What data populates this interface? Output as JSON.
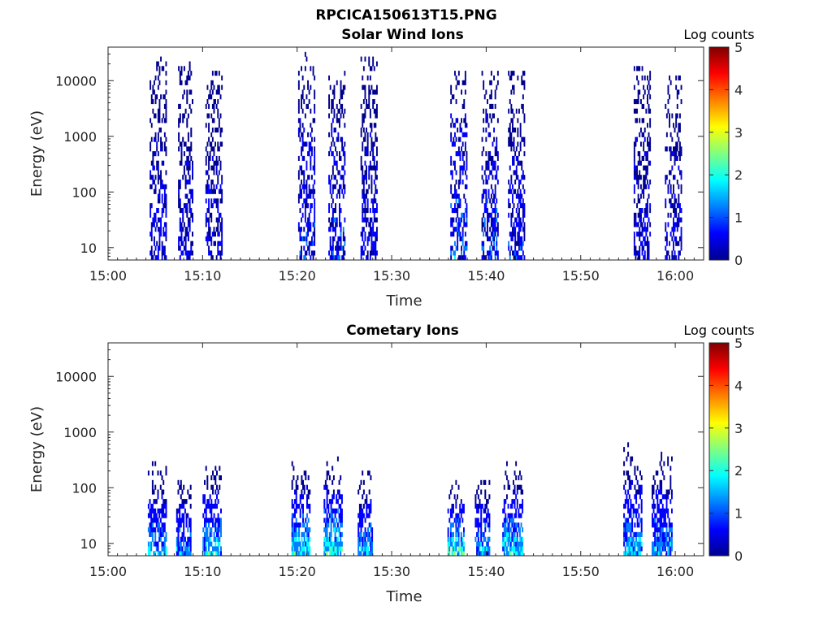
{
  "figure_title": "RPCICA150613T15.PNG",
  "colormap": [
    "#00008f",
    "#0000ff",
    "#0080ff",
    "#00ffff",
    "#80ff80",
    "#ffff00",
    "#ff8000",
    "#ff0000",
    "#800000"
  ],
  "chart_data": [
    {
      "type": "heatmap",
      "title": "Solar Wind Ions",
      "xlabel": "Time",
      "ylabel": "Energy (eV)",
      "x_ticks": [
        "15:00",
        "15:10",
        "15:20",
        "15:30",
        "15:40",
        "15:50",
        "16:00"
      ],
      "x_range_minutes": [
        0,
        63
      ],
      "y_scale": "log",
      "y_ticks": [
        "10",
        "100",
        "1000",
        "10000"
      ],
      "y_range": [
        6,
        40000
      ],
      "colorbar_label": "Log counts",
      "colorbar_ticks": [
        "0",
        "1",
        "2",
        "3",
        "4",
        "5"
      ],
      "colorbar_range": [
        0,
        5
      ],
      "bursts": [
        {
          "center_min": 5.3,
          "width_min": 1.8,
          "e_min": 6,
          "e_max": 25000,
          "peak_log": 0.9
        },
        {
          "center_min": 8.2,
          "width_min": 1.6,
          "e_min": 6,
          "e_max": 22000,
          "peak_log": 0.8
        },
        {
          "center_min": 11.2,
          "width_min": 1.8,
          "e_min": 6,
          "e_max": 15000,
          "peak_log": 0.8
        },
        {
          "center_min": 21.0,
          "width_min": 1.8,
          "e_min": 6,
          "e_max": 30000,
          "peak_log": 1.2
        },
        {
          "center_min": 24.2,
          "width_min": 1.8,
          "e_min": 6,
          "e_max": 15000,
          "peak_log": 1.3
        },
        {
          "center_min": 27.6,
          "width_min": 1.8,
          "e_min": 6,
          "e_max": 25000,
          "peak_log": 0.9
        },
        {
          "center_min": 37.1,
          "width_min": 1.8,
          "e_min": 6,
          "e_max": 15000,
          "peak_log": 1.7
        },
        {
          "center_min": 40.4,
          "width_min": 1.8,
          "e_min": 6,
          "e_max": 15000,
          "peak_log": 1.4
        },
        {
          "center_min": 43.2,
          "width_min": 1.8,
          "e_min": 6,
          "e_max": 15000,
          "peak_log": 1.1
        },
        {
          "center_min": 56.5,
          "width_min": 1.8,
          "e_min": 6,
          "e_max": 18000,
          "peak_log": 0.9
        },
        {
          "center_min": 59.8,
          "width_min": 1.8,
          "e_min": 6,
          "e_max": 12000,
          "peak_log": 0.9
        }
      ]
    },
    {
      "type": "heatmap",
      "title": "Cometary Ions",
      "xlabel": "Time",
      "ylabel": "Energy (eV)",
      "x_ticks": [
        "15:00",
        "15:10",
        "15:20",
        "15:30",
        "15:40",
        "15:50",
        "16:00"
      ],
      "x_range_minutes": [
        0,
        63
      ],
      "y_scale": "log",
      "y_ticks": [
        "10",
        "100",
        "1000",
        "10000"
      ],
      "y_range": [
        6,
        40000
      ],
      "colorbar_label": "Log counts",
      "colorbar_ticks": [
        "0",
        "1",
        "2",
        "3",
        "4",
        "5"
      ],
      "colorbar_range": [
        0,
        5
      ],
      "bursts": [
        {
          "center_min": 5.2,
          "width_min": 2.0,
          "e_min": 6,
          "e_max": 300,
          "peak_log": 2.1
        },
        {
          "center_min": 8.0,
          "width_min": 1.6,
          "e_min": 6,
          "e_max": 150,
          "peak_log": 2.0
        },
        {
          "center_min": 11.0,
          "width_min": 2.0,
          "e_min": 6,
          "e_max": 350,
          "peak_log": 2.3
        },
        {
          "center_min": 20.4,
          "width_min": 2.0,
          "e_min": 6,
          "e_max": 300,
          "peak_log": 2.6
        },
        {
          "center_min": 23.8,
          "width_min": 2.0,
          "e_min": 6,
          "e_max": 350,
          "peak_log": 2.8
        },
        {
          "center_min": 27.2,
          "width_min": 1.6,
          "e_min": 6,
          "e_max": 200,
          "peak_log": 2.2
        },
        {
          "center_min": 36.8,
          "width_min": 1.8,
          "e_min": 6,
          "e_max": 150,
          "peak_log": 3.0
        },
        {
          "center_min": 39.6,
          "width_min": 1.6,
          "e_min": 6,
          "e_max": 150,
          "peak_log": 2.2
        },
        {
          "center_min": 42.8,
          "width_min": 2.2,
          "e_min": 6,
          "e_max": 350,
          "peak_log": 2.4
        },
        {
          "center_min": 55.5,
          "width_min": 2.0,
          "e_min": 6,
          "e_max": 600,
          "peak_log": 2.2
        },
        {
          "center_min": 58.6,
          "width_min": 2.2,
          "e_min": 6,
          "e_max": 500,
          "peak_log": 2.0
        }
      ]
    }
  ]
}
